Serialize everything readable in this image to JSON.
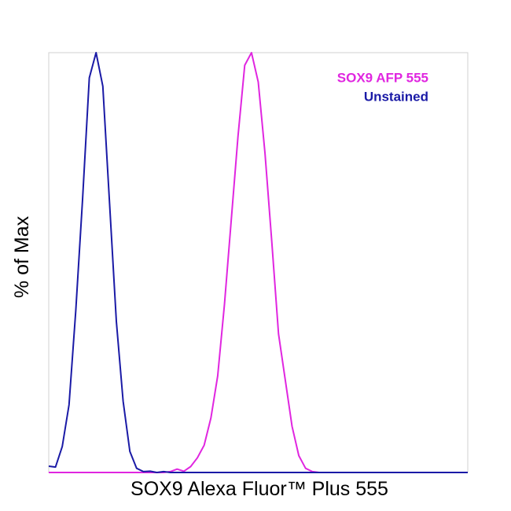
{
  "chart_data": {
    "type": "line",
    "xlabel": "SOX9 Alexa Fluor™ Plus 555",
    "ylabel": "% of Max",
    "x": [
      0,
      1,
      2,
      3,
      4,
      5,
      6,
      7,
      8,
      9,
      10,
      11,
      12,
      13,
      14,
      15,
      16,
      17,
      18,
      19,
      20,
      21,
      22,
      23,
      24,
      25,
      26,
      27,
      28,
      29,
      30,
      31,
      32,
      33,
      34,
      35,
      36,
      37,
      38,
      39,
      40,
      41,
      42,
      43,
      44,
      45,
      46,
      47,
      48,
      49,
      50,
      51,
      52,
      53,
      54,
      55,
      56,
      57,
      58,
      59,
      60,
      61,
      62
    ],
    "xlim": [
      0,
      62
    ],
    "ylim": [
      0,
      100
    ],
    "legend": "upper right",
    "series": [
      {
        "name": "SOX9 AFP 555",
        "color": "#e026e0",
        "values": [
          0,
          0,
          0,
          0,
          0,
          0,
          0,
          0,
          0,
          0,
          0,
          0,
          0,
          0,
          0,
          0,
          0,
          0,
          0.2,
          0.8,
          0.3,
          1.4,
          3.5,
          6.5,
          13,
          23,
          40,
          60,
          80,
          97,
          100,
          93,
          76,
          55,
          33,
          22,
          11,
          4,
          1,
          0.2,
          0,
          0,
          0,
          0,
          0,
          0,
          0,
          0,
          0,
          0,
          0,
          0,
          0,
          0,
          0,
          0,
          0,
          0,
          0,
          0,
          0,
          0,
          0
        ]
      },
      {
        "name": "Unstained",
        "color": "#1a1aa6",
        "values": [
          1.5,
          1.3,
          6.2,
          16.1,
          38.6,
          65,
          94,
          100,
          92,
          64,
          36,
          17,
          5,
          1,
          0.2,
          0.3,
          0,
          0.2,
          0,
          0,
          0,
          0,
          0,
          0,
          0,
          0,
          0,
          0,
          0,
          0,
          0,
          0,
          0,
          0,
          0,
          0,
          0,
          0,
          0,
          0,
          0,
          0,
          0,
          0,
          0,
          0,
          0,
          0,
          0,
          0,
          0,
          0,
          0,
          0,
          0,
          0,
          0,
          0,
          0,
          0,
          0,
          0,
          0
        ]
      }
    ]
  }
}
